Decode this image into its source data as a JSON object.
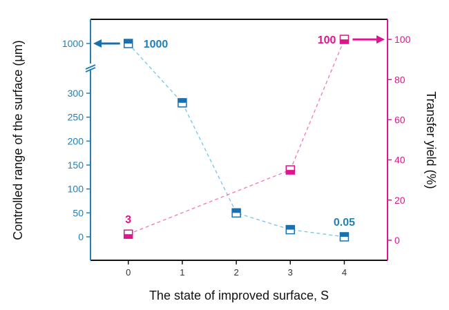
{
  "chart_data": {
    "type": "line",
    "title": "",
    "xlabel": "The state of improved surface, S",
    "ylabel": "Controlled range of the surface (μm)",
    "ylabel_right": "Transfer yield (%)",
    "x": [
      0,
      1,
      2,
      3,
      4
    ],
    "x_ticks": [
      "0",
      "1",
      "2",
      "3",
      "4"
    ],
    "xlim": [
      -0.7,
      4.8
    ],
    "y_left_ticks": [
      "0",
      "50",
      "100",
      "150",
      "200",
      "250",
      "300",
      "1000"
    ],
    "y_left_range": [
      -50,
      1000
    ],
    "y_left_axis_break": "between 300 and 1000",
    "y_right_ticks": [
      "0",
      "20",
      "40",
      "60",
      "80",
      "100"
    ],
    "y_right_range": [
      -10,
      110
    ],
    "series": [
      {
        "name": "Controlled range",
        "axis": "left",
        "color": "#1a6fae",
        "line_color": "#7ec8e8",
        "values": [
          1000,
          280,
          50,
          15,
          0.05
        ]
      },
      {
        "name": "Transfer yield",
        "axis": "right",
        "color": "#e0148c",
        "line_color": "#ee80c0",
        "values": [
          3,
          null,
          null,
          35,
          100
        ]
      }
    ],
    "annotations": [
      {
        "text": "1000",
        "series": "Controlled range",
        "x": 0,
        "arrow": "left"
      },
      {
        "text": "0.05",
        "series": "Controlled range",
        "x": 4
      },
      {
        "text": "3",
        "series": "Transfer yield",
        "x": 0
      },
      {
        "text": "100",
        "series": "Transfer yield",
        "x": 4,
        "arrow": "right"
      }
    ],
    "grid": false,
    "legend": "none"
  }
}
